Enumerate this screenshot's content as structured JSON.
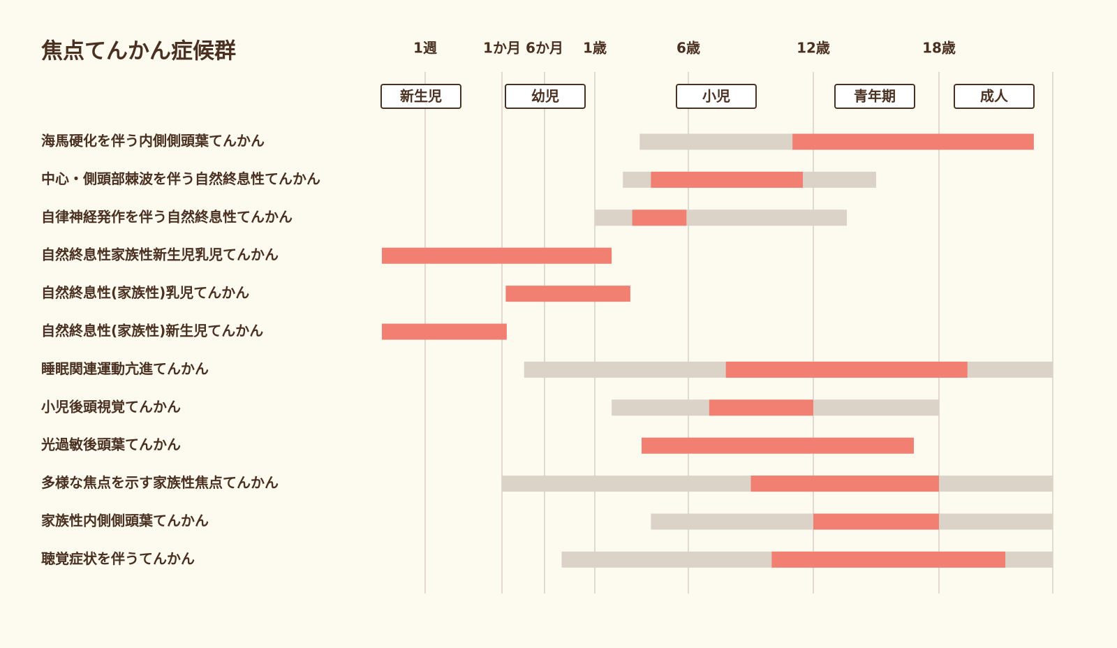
{
  "chart_data": {
    "type": "range-bar",
    "title": "焦点てんかん症候群",
    "xlim": [
      0,
      30
    ],
    "xticks": [
      {
        "value": 0.019,
        "label": "1週"
      },
      {
        "value": 0.083,
        "label": "1か月"
      },
      {
        "value": 0.5,
        "label": "6か月"
      },
      {
        "value": 1,
        "label": "1歳"
      },
      {
        "value": 6,
        "label": "6歳"
      },
      {
        "value": 12,
        "label": "12歳"
      },
      {
        "value": 18,
        "label": "18歳"
      }
    ],
    "stages": [
      "新生児",
      "幼児",
      "小児",
      "青年期",
      "成人"
    ],
    "range_color": "#dcd3c8",
    "peak_color": "#f28072",
    "grid": true,
    "rows": [
      {
        "label": "海馬硬化を伴う内側側頭葉てんかん",
        "range": [
          3.4,
          28
        ],
        "peak": [
          11,
          28
        ]
      },
      {
        "label": "中心・側頭部棘波を伴う自然終息性てんかん",
        "range": [
          2.5,
          15
        ],
        "peak": [
          4,
          11.5
        ]
      },
      {
        "label": "自律神経発作を伴う自然終息性てんかん",
        "range": [
          1,
          13.6
        ],
        "peak": [
          3,
          5.9
        ]
      },
      {
        "label": "自然終息性家族性新生児乳児てんかん",
        "range": null,
        "peak": [
          0,
          1.9
        ]
      },
      {
        "label": "自然終息性(家族性)乳児てんかん",
        "range": null,
        "peak": [
          0.12,
          2.9
        ]
      },
      {
        "label": "自然終息性(家族性)新生児てんかん",
        "range": null,
        "peak": [
          0,
          0.13
        ]
      },
      {
        "label": "睡眠関連運動亢進てんかん",
        "range": [
          0.3,
          30
        ],
        "peak": [
          7.8,
          21
        ]
      },
      {
        "label": "小児後頭視覚てんかん",
        "range": [
          1.9,
          18
        ],
        "peak": [
          7,
          12
        ]
      },
      {
        "label": "光過敏後頭葉てんかん",
        "range": null,
        "peak": [
          3.5,
          16.8
        ]
      },
      {
        "label": "多様な焦点を示す家族性焦点てんかん",
        "range": [
          0.083,
          30
        ],
        "peak": [
          9,
          18
        ]
      },
      {
        "label": "家族性内側側頭葉てんかん",
        "range": [
          4,
          30
        ],
        "peak": [
          12,
          18
        ]
      },
      {
        "label": "聴覚症状を伴うてんかん",
        "range": [
          0.67,
          30
        ],
        "peak": [
          10,
          25
        ]
      }
    ]
  }
}
